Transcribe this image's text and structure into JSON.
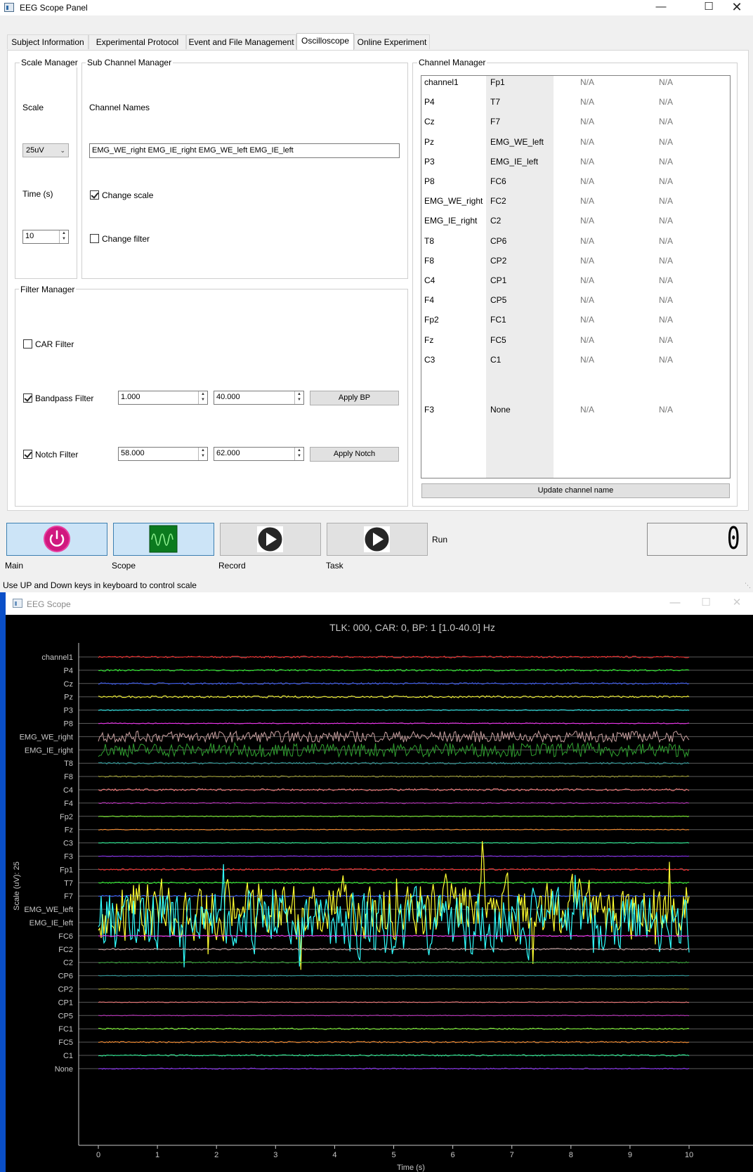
{
  "panel": {
    "title": "EEG Scope Panel",
    "tabs": [
      "Subject Information",
      "Experimental Protocol",
      "Event and File Management",
      "Oscilloscope",
      "Online Experiment"
    ],
    "active_tab": "Oscilloscope",
    "scale_manager": {
      "title": "Scale Manager",
      "scale_label": "Scale",
      "scale_value": "25uV",
      "time_label": "Time (s)",
      "time_value": "10"
    },
    "sub_channel_manager": {
      "title": "Sub Channel Manager",
      "channel_names_label": "Channel Names",
      "channel_names_value": "EMG_WE_right EMG_IE_right EMG_WE_left EMG_IE_left",
      "change_scale_label": "Change scale",
      "change_scale_checked": true,
      "change_filter_label": "Change filter",
      "change_filter_checked": false
    },
    "filter_manager": {
      "title": "Filter Manager",
      "car_label": "CAR Filter",
      "car_checked": false,
      "bandpass_label": "Bandpass Filter",
      "bandpass_checked": true,
      "bp_low": "1.000",
      "bp_high": "40.000",
      "apply_bp": "Apply BP",
      "notch_label": "Notch Filter",
      "notch_checked": true,
      "notch_low": "58.000",
      "notch_high": "62.000",
      "apply_notch": "Apply Notch"
    },
    "channel_manager": {
      "title": "Channel Manager",
      "rows": [
        [
          "channel1",
          "Fp1",
          "N/A",
          "N/A"
        ],
        [
          "P4",
          "T7",
          "N/A",
          "N/A"
        ],
        [
          "Cz",
          "F7",
          "N/A",
          "N/A"
        ],
        [
          "Pz",
          "EMG_WE_left",
          "N/A",
          "N/A"
        ],
        [
          "P3",
          "EMG_IE_left",
          "N/A",
          "N/A"
        ],
        [
          "P8",
          "FC6",
          "N/A",
          "N/A"
        ],
        [
          "EMG_WE_right",
          "FC2",
          "N/A",
          "N/A"
        ],
        [
          "EMG_IE_right",
          "C2",
          "N/A",
          "N/A"
        ],
        [
          "T8",
          "CP6",
          "N/A",
          "N/A"
        ],
        [
          "F8",
          "CP2",
          "N/A",
          "N/A"
        ],
        [
          "C4",
          "CP1",
          "N/A",
          "N/A"
        ],
        [
          "F4",
          "CP5",
          "N/A",
          "N/A"
        ],
        [
          "Fp2",
          "FC1",
          "N/A",
          "N/A"
        ],
        [
          "Fz",
          "FC5",
          "N/A",
          "N/A"
        ],
        [
          "C3",
          "C1",
          "N/A",
          "N/A"
        ],
        [
          "F3",
          "None",
          "N/A",
          "N/A"
        ]
      ],
      "update_button": "Update channel name"
    },
    "controls": {
      "main_label": "Main",
      "scope_label": "Scope",
      "record_label": "Record",
      "task_label": "Task",
      "run_label": "Run",
      "lcd_value": "0"
    },
    "status_text": "Use UP and Down keys in keyboard to control scale"
  },
  "scope": {
    "title": "EEG Scope",
    "colors": {
      "background": "#000000",
      "grid": "#5a5a5a",
      "axis": "#c8c8c8",
      "text": "#c8c8c8",
      "title_bar_frame": "#0a4fc8"
    },
    "chart_data": {
      "type": "line",
      "title": "TLK: 000, CAR: 0, BP: 1 [1.0-40.0] Hz",
      "xlabel": "Time (s)",
      "ylabel": "Scale (uV): 25",
      "xlim": [
        0,
        10
      ],
      "xticks": [
        "0",
        "1",
        "2",
        "3",
        "4",
        "5",
        "6",
        "7",
        "8",
        "9",
        "10"
      ],
      "grid": true,
      "series": [
        {
          "name": "channel1",
          "color": "#ff3030",
          "amplitude": 0.12
        },
        {
          "name": "P4",
          "color": "#30ff30",
          "amplitude": 0.12
        },
        {
          "name": "Cz",
          "color": "#3a5cff",
          "amplitude": 0.12
        },
        {
          "name": "Pz",
          "color": "#ffff30",
          "amplitude": 0.14
        },
        {
          "name": "P3",
          "color": "#30ffff",
          "amplitude": 0.06
        },
        {
          "name": "P8",
          "color": "#ff30ff",
          "amplitude": 0.06
        },
        {
          "name": "EMG_WE_right",
          "color": "#c8a0a0",
          "amplitude": 0.8
        },
        {
          "name": "EMG_IE_right",
          "color": "#30a030",
          "amplitude": 1.0
        },
        {
          "name": "T8",
          "color": "#30a0a0",
          "amplitude": 0.12
        },
        {
          "name": "F8",
          "color": "#a0a030",
          "amplitude": 0.1
        },
        {
          "name": "C4",
          "color": "#ff8080",
          "amplitude": 0.14
        },
        {
          "name": "F4",
          "color": "#c030c0",
          "amplitude": 0.08
        },
        {
          "name": "Fp2",
          "color": "#80ff30",
          "amplitude": 0.06
        },
        {
          "name": "Fz",
          "color": "#ff9030",
          "amplitude": 0.06
        },
        {
          "name": "C3",
          "color": "#30ffa0",
          "amplitude": 0.05
        },
        {
          "name": "F3",
          "color": "#9030ff",
          "amplitude": 0.05
        },
        {
          "name": "Fp1",
          "color": "#ff3030",
          "amplitude": 0.12
        },
        {
          "name": "T7",
          "color": "#30ff30",
          "amplitude": 0.1
        },
        {
          "name": "F7",
          "color": "#3a5cff",
          "amplitude": 0.1
        },
        {
          "name": "EMG_WE_left",
          "color": "#ffff30",
          "amplitude": 3.4
        },
        {
          "name": "EMG_IE_left",
          "color": "#30ffff",
          "amplitude": 3.6
        },
        {
          "name": "FC6",
          "color": "#ff30ff",
          "amplitude": 0.08
        },
        {
          "name": "FC2",
          "color": "#c8a0a0",
          "amplitude": 0.12
        },
        {
          "name": "C2",
          "color": "#30a030",
          "amplitude": 0.1
        },
        {
          "name": "CP6",
          "color": "#30a0a0",
          "amplitude": 0.05
        },
        {
          "name": "CP2",
          "color": "#a0a030",
          "amplitude": 0.05
        },
        {
          "name": "CP1",
          "color": "#ff8080",
          "amplitude": 0.05
        },
        {
          "name": "CP5",
          "color": "#c030c0",
          "amplitude": 0.05
        },
        {
          "name": "FC1",
          "color": "#80ff30",
          "amplitude": 0.1
        },
        {
          "name": "FC5",
          "color": "#ff9030",
          "amplitude": 0.1
        },
        {
          "name": "C1",
          "color": "#30ffa0",
          "amplitude": 0.1
        },
        {
          "name": "None",
          "color": "#9030ff",
          "amplitude": 0.08
        }
      ]
    }
  }
}
